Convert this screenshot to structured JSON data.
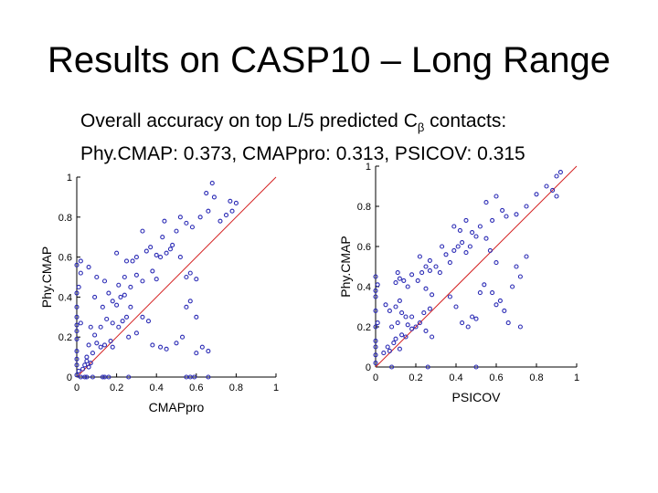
{
  "slide": {
    "title": "Results on CASP10 – Long Range",
    "subtitle_line1_prefix": "Overall accuracy on top L/5  predicted C",
    "subtitle_line1_sub": "β",
    "subtitle_line1_suffix": " contacts:",
    "subtitle_line2": "Phy.CMAP: 0.373, CMAPpro: 0.313, PSICOV: 0.315"
  },
  "colors": {
    "marker": "#2b2bb5",
    "diagonal": "#d42020",
    "axis": "#000000"
  },
  "chart_data": [
    {
      "type": "scatter",
      "xlabel": "CMAPpro",
      "ylabel": "Phy.CMAP",
      "xlim": [
        0,
        1
      ],
      "ylim": [
        0,
        1
      ],
      "xticks": [
        0,
        0.2,
        0.4,
        0.6,
        0.8,
        1
      ],
      "xtick_labels": [
        "0",
        "0.2",
        "0.4",
        "0.6",
        "0.8",
        "1"
      ],
      "yticks": [
        0,
        0.2,
        0.4,
        0.6,
        0.8,
        1
      ],
      "ytick_labels": [
        "0",
        "0.2",
        "0.4",
        "0.6",
        "0.8",
        "1"
      ],
      "diagonal": true,
      "points": [
        [
          0.02,
          0.0
        ],
        [
          0.04,
          0.0
        ],
        [
          0.05,
          0.0
        ],
        [
          0.08,
          0.0
        ],
        [
          0.13,
          0.0
        ],
        [
          0.14,
          0.0
        ],
        [
          0.16,
          0.0
        ],
        [
          0.26,
          0.0
        ],
        [
          0.55,
          0.0
        ],
        [
          0.57,
          0.0
        ],
        [
          0.59,
          0.0
        ],
        [
          0.66,
          0.0
        ],
        [
          0.0,
          0.01
        ],
        [
          0.01,
          0.03
        ],
        [
          0.0,
          0.06
        ],
        [
          0.0,
          0.09
        ],
        [
          0.0,
          0.13
        ],
        [
          0.0,
          0.19
        ],
        [
          0.0,
          0.23
        ],
        [
          0.0,
          0.26
        ],
        [
          0.0,
          0.3
        ],
        [
          0.0,
          0.35
        ],
        [
          0.0,
          0.42
        ],
        [
          0.01,
          0.45
        ],
        [
          0.02,
          0.52
        ],
        [
          0.0,
          0.56
        ],
        [
          0.02,
          0.58
        ],
        [
          0.03,
          0.04
        ],
        [
          0.04,
          0.06
        ],
        [
          0.05,
          0.08
        ],
        [
          0.06,
          0.05
        ],
        [
          0.07,
          0.07
        ],
        [
          0.05,
          0.1
        ],
        [
          0.08,
          0.12
        ],
        [
          0.06,
          0.16
        ],
        [
          0.1,
          0.17
        ],
        [
          0.12,
          0.15
        ],
        [
          0.14,
          0.16
        ],
        [
          0.09,
          0.21
        ],
        [
          0.07,
          0.25
        ],
        [
          0.12,
          0.25
        ],
        [
          0.15,
          0.29
        ],
        [
          0.18,
          0.27
        ],
        [
          0.17,
          0.18
        ],
        [
          0.21,
          0.25
        ],
        [
          0.23,
          0.28
        ],
        [
          0.25,
          0.3
        ],
        [
          0.13,
          0.35
        ],
        [
          0.16,
          0.42
        ],
        [
          0.18,
          0.38
        ],
        [
          0.2,
          0.36
        ],
        [
          0.22,
          0.4
        ],
        [
          0.24,
          0.41
        ],
        [
          0.27,
          0.35
        ],
        [
          0.09,
          0.4
        ],
        [
          0.1,
          0.5
        ],
        [
          0.06,
          0.55
        ],
        [
          0.14,
          0.48
        ],
        [
          0.21,
          0.46
        ],
        [
          0.24,
          0.5
        ],
        [
          0.27,
          0.45
        ],
        [
          0.3,
          0.51
        ],
        [
          0.33,
          0.48
        ],
        [
          0.28,
          0.58
        ],
        [
          0.3,
          0.6
        ],
        [
          0.2,
          0.62
        ],
        [
          0.4,
          0.49
        ],
        [
          0.38,
          0.53
        ],
        [
          0.42,
          0.6
        ],
        [
          0.45,
          0.62
        ],
        [
          0.47,
          0.64
        ],
        [
          0.43,
          0.7
        ],
        [
          0.5,
          0.73
        ],
        [
          0.52,
          0.6
        ],
        [
          0.48,
          0.66
        ],
        [
          0.4,
          0.61
        ],
        [
          0.37,
          0.65
        ],
        [
          0.33,
          0.3
        ],
        [
          0.36,
          0.28
        ],
        [
          0.38,
          0.16
        ],
        [
          0.42,
          0.15
        ],
        [
          0.45,
          0.14
        ],
        [
          0.5,
          0.17
        ],
        [
          0.53,
          0.2
        ],
        [
          0.55,
          0.35
        ],
        [
          0.57,
          0.38
        ],
        [
          0.6,
          0.3
        ],
        [
          0.6,
          0.12
        ],
        [
          0.63,
          0.15
        ],
        [
          0.66,
          0.13
        ],
        [
          0.55,
          0.5
        ],
        [
          0.57,
          0.52
        ],
        [
          0.6,
          0.49
        ],
        [
          0.26,
          0.2
        ],
        [
          0.3,
          0.22
        ],
        [
          0.18,
          0.15
        ],
        [
          0.02,
          0.27
        ],
        [
          0.25,
          0.58
        ],
        [
          0.52,
          0.8
        ],
        [
          0.55,
          0.77
        ],
        [
          0.58,
          0.75
        ],
        [
          0.62,
          0.8
        ],
        [
          0.65,
          0.92
        ],
        [
          0.69,
          0.9
        ],
        [
          0.72,
          0.78
        ],
        [
          0.75,
          0.81
        ],
        [
          0.78,
          0.83
        ],
        [
          0.8,
          0.87
        ],
        [
          0.66,
          0.83
        ],
        [
          0.68,
          0.97
        ],
        [
          0.77,
          0.88
        ],
        [
          0.44,
          0.78
        ],
        [
          0.33,
          0.73
        ],
        [
          0.35,
          0.63
        ]
      ]
    },
    {
      "type": "scatter",
      "xlabel": "PSICOV",
      "ylabel": "Phy.CMAP",
      "xlim": [
        0,
        1
      ],
      "ylim": [
        0,
        1
      ],
      "xticks": [
        0,
        0.2,
        0.4,
        0.6,
        0.8,
        1
      ],
      "xtick_labels": [
        "0",
        "0.2",
        "0.4",
        "0.6",
        "0.8",
        "1"
      ],
      "yticks": [
        0,
        0.2,
        0.4,
        0.6,
        0.8,
        1
      ],
      "ytick_labels": [
        "0",
        "0.2",
        "0.4",
        "0.6",
        "0.8",
        "1"
      ],
      "diagonal": true,
      "points": [
        [
          0.0,
          0.02
        ],
        [
          0.0,
          0.06
        ],
        [
          0.0,
          0.1
        ],
        [
          0.0,
          0.13
        ],
        [
          0.0,
          0.2
        ],
        [
          0.01,
          0.22
        ],
        [
          0.0,
          0.28
        ],
        [
          0.0,
          0.35
        ],
        [
          0.0,
          0.38
        ],
        [
          0.01,
          0.41
        ],
        [
          0.0,
          0.45
        ],
        [
          0.08,
          0.0
        ],
        [
          0.26,
          0.0
        ],
        [
          0.5,
          0.0
        ],
        [
          0.04,
          0.07
        ],
        [
          0.06,
          0.1
        ],
        [
          0.07,
          0.08
        ],
        [
          0.09,
          0.12
        ],
        [
          0.1,
          0.14
        ],
        [
          0.12,
          0.09
        ],
        [
          0.13,
          0.16
        ],
        [
          0.15,
          0.15
        ],
        [
          0.08,
          0.2
        ],
        [
          0.11,
          0.22
        ],
        [
          0.07,
          0.28
        ],
        [
          0.05,
          0.31
        ],
        [
          0.1,
          0.3
        ],
        [
          0.12,
          0.33
        ],
        [
          0.13,
          0.27
        ],
        [
          0.15,
          0.25
        ],
        [
          0.16,
          0.21
        ],
        [
          0.18,
          0.19
        ],
        [
          0.2,
          0.2
        ],
        [
          0.22,
          0.22
        ],
        [
          0.18,
          0.25
        ],
        [
          0.24,
          0.27
        ],
        [
          0.27,
          0.29
        ],
        [
          0.25,
          0.18
        ],
        [
          0.28,
          0.15
        ],
        [
          0.1,
          0.42
        ],
        [
          0.11,
          0.47
        ],
        [
          0.12,
          0.44
        ],
        [
          0.14,
          0.43
        ],
        [
          0.16,
          0.4
        ],
        [
          0.18,
          0.46
        ],
        [
          0.21,
          0.43
        ],
        [
          0.23,
          0.47
        ],
        [
          0.25,
          0.5
        ],
        [
          0.27,
          0.48
        ],
        [
          0.3,
          0.5
        ],
        [
          0.32,
          0.47
        ],
        [
          0.25,
          0.39
        ],
        [
          0.28,
          0.36
        ],
        [
          0.22,
          0.55
        ],
        [
          0.27,
          0.53
        ],
        [
          0.33,
          0.6
        ],
        [
          0.35,
          0.56
        ],
        [
          0.37,
          0.52
        ],
        [
          0.39,
          0.58
        ],
        [
          0.41,
          0.6
        ],
        [
          0.43,
          0.62
        ],
        [
          0.45,
          0.57
        ],
        [
          0.47,
          0.6
        ],
        [
          0.39,
          0.7
        ],
        [
          0.42,
          0.68
        ],
        [
          0.45,
          0.73
        ],
        [
          0.48,
          0.67
        ],
        [
          0.5,
          0.65
        ],
        [
          0.55,
          0.64
        ],
        [
          0.57,
          0.58
        ],
        [
          0.6,
          0.52
        ],
        [
          0.37,
          0.35
        ],
        [
          0.4,
          0.3
        ],
        [
          0.43,
          0.22
        ],
        [
          0.46,
          0.2
        ],
        [
          0.48,
          0.25
        ],
        [
          0.5,
          0.24
        ],
        [
          0.52,
          0.37
        ],
        [
          0.54,
          0.41
        ],
        [
          0.58,
          0.37
        ],
        [
          0.6,
          0.31
        ],
        [
          0.62,
          0.33
        ],
        [
          0.64,
          0.28
        ],
        [
          0.66,
          0.22
        ],
        [
          0.7,
          0.5
        ],
        [
          0.72,
          0.45
        ],
        [
          0.75,
          0.55
        ],
        [
          0.72,
          0.2
        ],
        [
          0.68,
          0.4
        ],
        [
          0.55,
          0.82
        ],
        [
          0.6,
          0.85
        ],
        [
          0.63,
          0.78
        ],
        [
          0.65,
          0.75
        ],
        [
          0.7,
          0.76
        ],
        [
          0.75,
          0.8
        ],
        [
          0.8,
          0.86
        ],
        [
          0.85,
          0.9
        ],
        [
          0.88,
          0.88
        ],
        [
          0.9,
          0.95
        ],
        [
          0.92,
          0.97
        ],
        [
          0.9,
          0.85
        ],
        [
          0.52,
          0.7
        ],
        [
          0.58,
          0.73
        ]
      ]
    }
  ]
}
